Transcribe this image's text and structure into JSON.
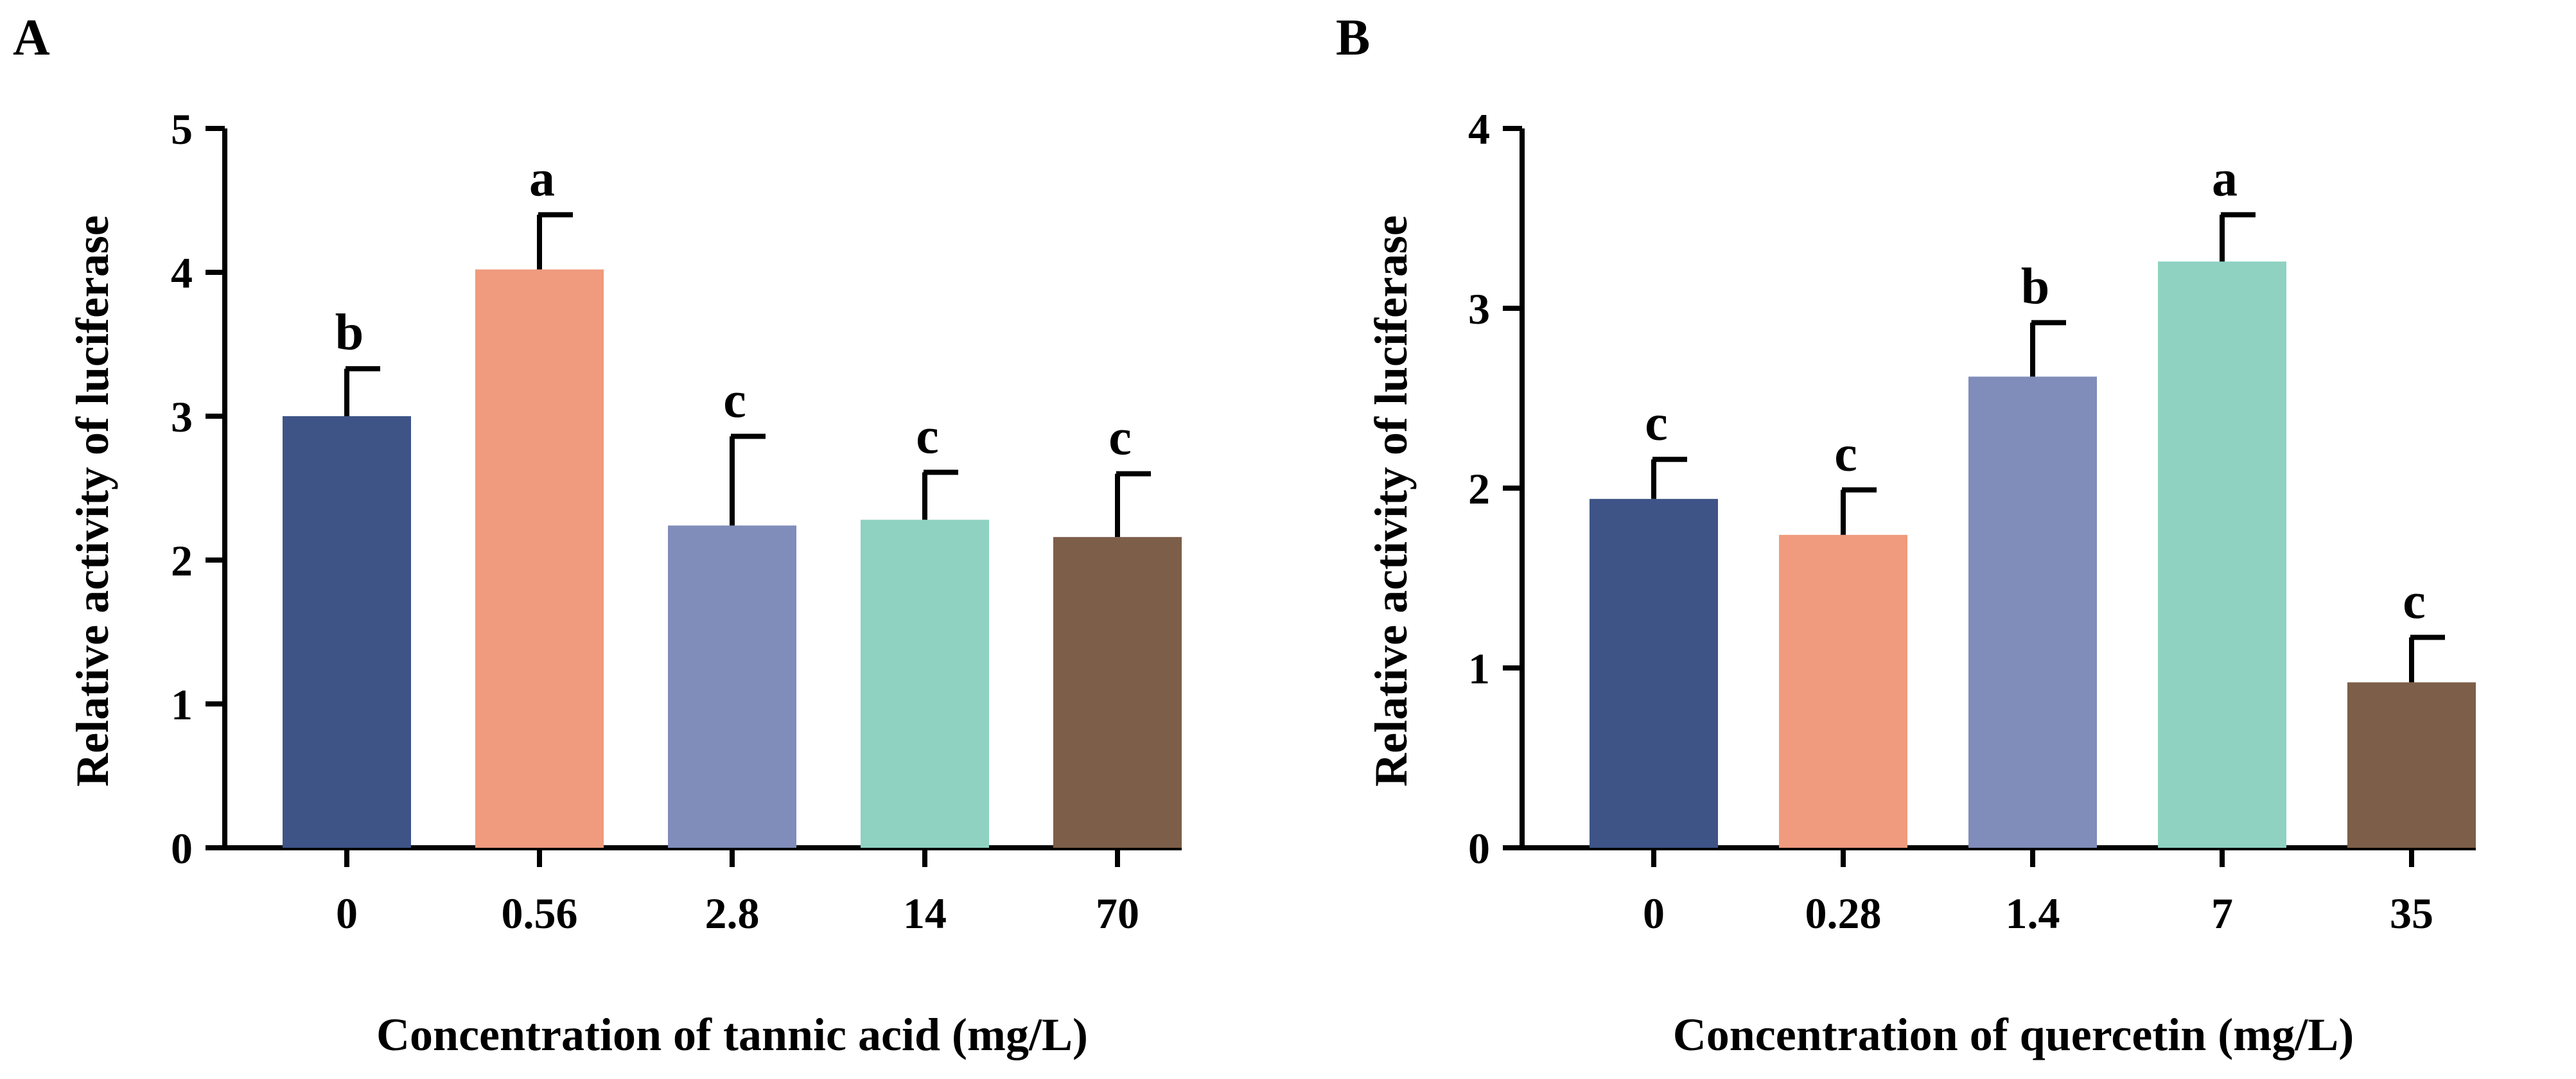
{
  "colors": {
    "axis": "#000000",
    "bars": [
      "#3e5487",
      "#f09a7e",
      "#808dba",
      "#8fd2c1",
      "#7d5e48"
    ]
  },
  "chart_data": [
    {
      "type": "bar",
      "panel_label": "A",
      "categories": [
        "0",
        "0.56",
        "2.8",
        "14",
        "70"
      ],
      "values": [
        3.0,
        4.02,
        2.24,
        2.28,
        2.16
      ],
      "errors": [
        0.33,
        0.38,
        0.62,
        0.33,
        0.44
      ],
      "significance": [
        "b",
        "a",
        "c",
        "c",
        "c"
      ],
      "xlabel": "Concentration of tannic acid (mg/L)",
      "ylabel": "Relative activity of luciferase",
      "ylim": [
        0,
        5
      ],
      "yticks": [
        "0",
        "1",
        "2",
        "3",
        "4",
        "5"
      ]
    },
    {
      "type": "bar",
      "panel_label": "B",
      "categories": [
        "0",
        "0.28",
        "1.4",
        "7",
        "35"
      ],
      "values": [
        1.94,
        1.74,
        2.62,
        3.26,
        0.92
      ],
      "errors": [
        0.22,
        0.25,
        0.3,
        0.26,
        0.25
      ],
      "significance": [
        "c",
        "c",
        "b",
        "a",
        "c"
      ],
      "xlabel": "Concentration of quercetin (mg/L)",
      "ylabel": "Relative activity of luciferase",
      "ylim": [
        0,
        4
      ],
      "yticks": [
        "0",
        "1",
        "2",
        "3",
        "4"
      ]
    }
  ]
}
